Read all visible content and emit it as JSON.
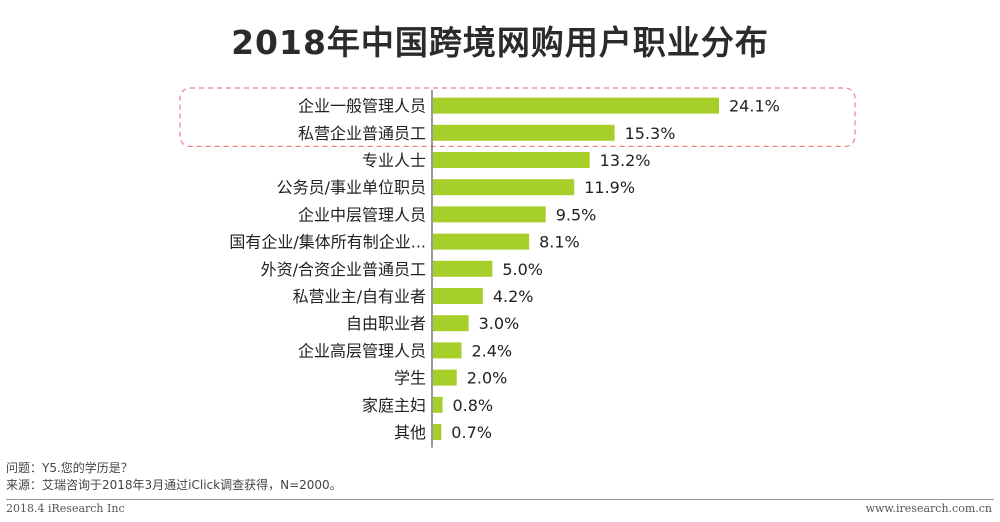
{
  "chart_data": {
    "type": "bar",
    "orientation": "horizontal",
    "title": "2018年中国跨境网购用户职业分布",
    "categories": [
      "企业一般管理人员",
      "私营企业普通员工",
      "专业人士",
      "公务员/事业单位职员",
      "企业中层管理人员",
      "国有企业/集体所有制企业...",
      "外资/合资企业普通员工",
      "私营业主/自有业者",
      "自由职业者",
      "企业高层管理人员",
      "学生",
      "家庭主妇",
      "其他"
    ],
    "values": [
      24.1,
      15.3,
      13.2,
      11.9,
      9.5,
      8.1,
      5.0,
      4.2,
      3.0,
      2.4,
      2.0,
      0.8,
      0.7
    ],
    "value_labels": [
      "24.1%",
      "15.3%",
      "13.2%",
      "11.9%",
      "9.5%",
      "8.1%",
      "5.0%",
      "4.2%",
      "3.0%",
      "2.4%",
      "2.0%",
      "0.8%",
      "0.7%"
    ],
    "bar_color": "#a6cf29",
    "highlight_color": "#f08080",
    "highlighted_categories": [
      "企业一般管理人员",
      "私营企业普通员工"
    ],
    "grid": false,
    "legend": "none"
  },
  "footnotes": {
    "question": "问题：Y5.您的学历是？",
    "source": "来源：艾瑞咨询于2018年3月通过iClick调查获得，N=2000。"
  },
  "footer": {
    "left": "2018.4 iResearch Inc",
    "right": "www.iresearch.com.cn"
  }
}
